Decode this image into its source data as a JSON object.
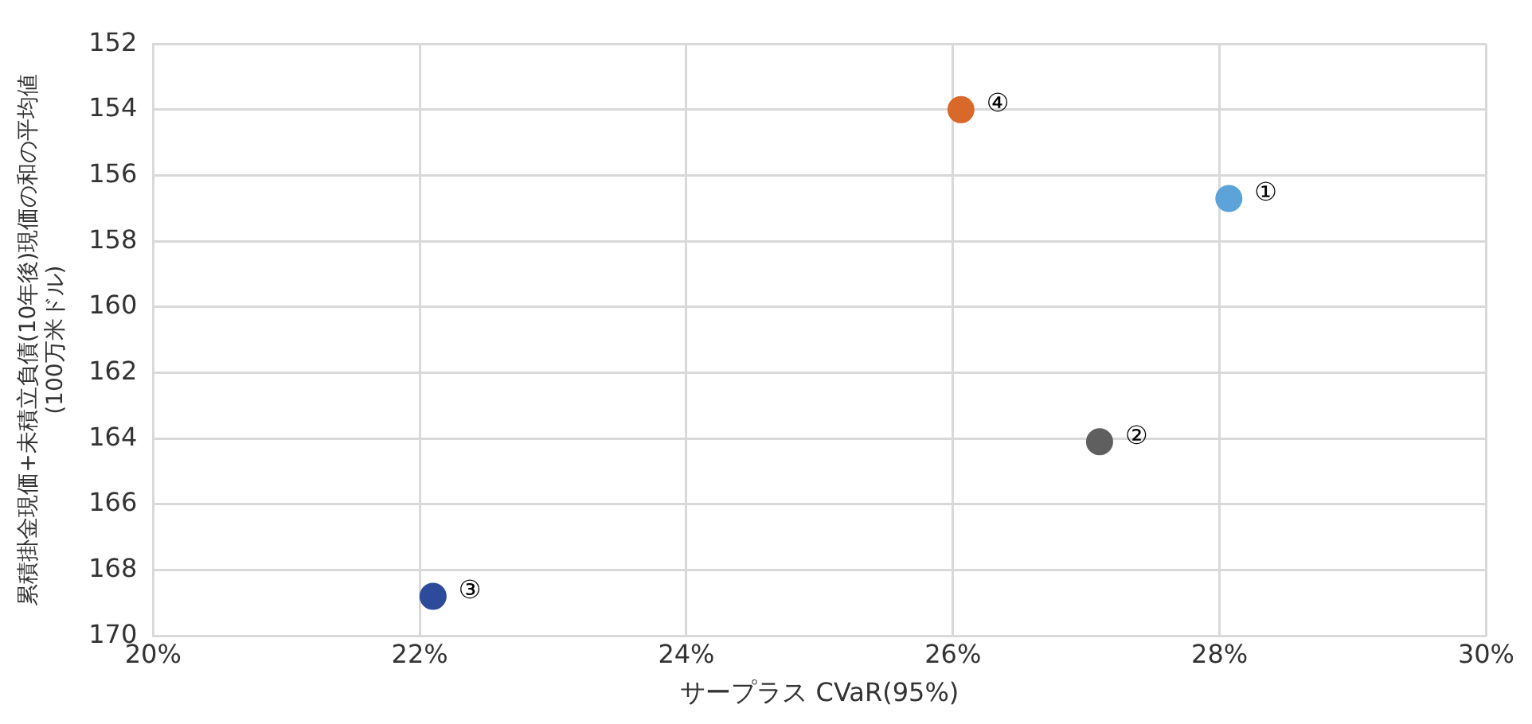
{
  "chart_data": {
    "type": "scatter",
    "xlabel": "サープラス CVaR(95%)",
    "ylabel": "累積掛金現価+未積立負債(10年後)現価の和の平均値\n(100万米ドル)",
    "x": [
      28.07,
      27.1,
      22.1,
      26.06
    ],
    "values": [
      156.7,
      164.1,
      168.8,
      154.0
    ],
    "colors": [
      "#5ba3d9",
      "#5f5f5f",
      "#2e4a9a",
      "#d9692a"
    ],
    "xlim": [
      20,
      30
    ],
    "xticks": [
      {
        "value": 20,
        "label": "20%"
      },
      {
        "value": 22,
        "label": "22%"
      },
      {
        "value": 24,
        "label": "24%"
      },
      {
        "value": 26,
        "label": "26%"
      },
      {
        "value": 28,
        "label": "28%"
      },
      {
        "value": 30,
        "label": "30%"
      }
    ],
    "ylim": [
      170,
      152
    ],
    "yticks": [
      152,
      154,
      156,
      158,
      160,
      162,
      164,
      166,
      168,
      170
    ],
    "annotations": [
      {
        "text": "①",
        "x": 28.07,
        "y": 156.7
      },
      {
        "text": "②",
        "x": 27.1,
        "y": 164.1
      },
      {
        "text": "③",
        "x": 22.1,
        "y": 168.8
      },
      {
        "text": "④",
        "x": 26.06,
        "y": 154.0
      }
    ],
    "grid": true,
    "legend": false,
    "marker": "circle"
  }
}
